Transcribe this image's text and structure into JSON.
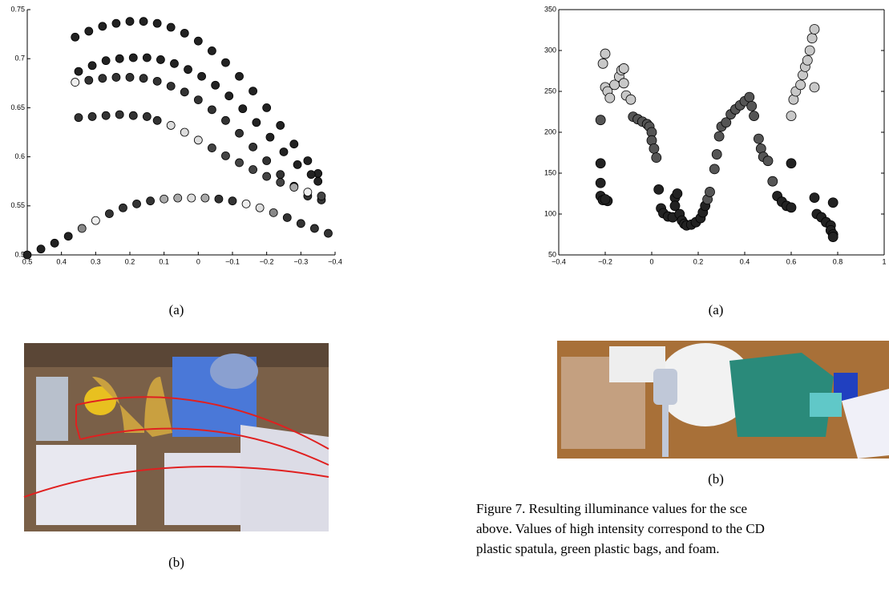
{
  "chart_data": [
    {
      "type": "scatter",
      "xlim": [
        0.5,
        -0.4
      ],
      "ylim": [
        0.5,
        0.75
      ],
      "box": false,
      "xticks": [
        0.5,
        0.4,
        0.3,
        0.2,
        0.1,
        0,
        {
          "value": -0.1,
          "label": "−0.1"
        },
        {
          "value": -0.2,
          "label": "−0.2"
        },
        {
          "value": -0.3,
          "label": "−0.3"
        },
        {
          "value": -0.4,
          "label": "−0.4"
        }
      ],
      "yticks": [
        0.5,
        0.55,
        0.6,
        0.65,
        0.7,
        0.75
      ],
      "series": [
        {
          "x": [
            0.36,
            0.32,
            0.28,
            0.24,
            0.2,
            0.16,
            0.12,
            0.08,
            0.04,
            0,
            -0.04,
            -0.08,
            -0.12,
            -0.16,
            -0.2,
            -0.24,
            -0.28,
            -0.32,
            -0.35
          ],
          "values": [
            0.722,
            0.728,
            0.733,
            0.736,
            0.738,
            0.738,
            0.736,
            0.732,
            0.726,
            0.718,
            0.708,
            0.696,
            0.682,
            0.667,
            0.65,
            0.632,
            0.613,
            0.596,
            0.583
          ],
          "colors": [
            "#222",
            "#222",
            "#222",
            "#222",
            "#222",
            "#222",
            "#222",
            "#222",
            "#222",
            "#222",
            "#222",
            "#222",
            "#222",
            "#222",
            "#222",
            "#222",
            "#222",
            "#222",
            "#222"
          ]
        },
        {
          "x": [
            0.35,
            0.31,
            0.27,
            0.23,
            0.19,
            0.15,
            0.11,
            0.07,
            0.03,
            -0.01,
            -0.05,
            -0.09,
            -0.13,
            -0.17,
            -0.21,
            -0.25,
            -0.29,
            -0.33,
            -0.35
          ],
          "values": [
            0.687,
            0.693,
            0.698,
            0.7,
            0.701,
            0.701,
            0.699,
            0.695,
            0.689,
            0.682,
            0.673,
            0.662,
            0.649,
            0.635,
            0.62,
            0.605,
            0.592,
            0.582,
            0.575
          ],
          "colors": [
            "#222",
            "#222",
            "#222",
            "#222",
            "#222",
            "#222",
            "#222",
            "#222",
            "#222",
            "#222",
            "#222",
            "#222",
            "#222",
            "#222",
            "#222",
            "#222",
            "#222",
            "#222",
            "#222"
          ]
        },
        {
          "x": [
            0.36,
            0.32,
            0.28,
            0.24,
            0.2,
            0.16,
            0.12,
            0.08,
            0.04,
            0,
            -0.04,
            -0.08,
            -0.12,
            -0.16,
            -0.2,
            -0.24,
            -0.28,
            -0.32,
            -0.36
          ],
          "values": [
            0.676,
            0.678,
            0.68,
            0.681,
            0.681,
            0.68,
            0.677,
            0.672,
            0.666,
            0.658,
            0.648,
            0.637,
            0.624,
            0.61,
            0.596,
            0.582,
            0.57,
            0.56,
            0.556
          ],
          "colors": [
            "#eee",
            "#333",
            "#333",
            "#333",
            "#333",
            "#333",
            "#333",
            "#333",
            "#333",
            "#333",
            "#333",
            "#333",
            "#333",
            "#333",
            "#333",
            "#333",
            "#333",
            "#333",
            "#333"
          ]
        },
        {
          "x": [
            0.35,
            0.31,
            0.27,
            0.23,
            0.19,
            0.15,
            0.12,
            0.08,
            0.04,
            0,
            -0.04,
            -0.08,
            -0.12,
            -0.16,
            -0.2,
            -0.24,
            -0.28,
            -0.32,
            -0.36
          ],
          "values": [
            0.64,
            0.641,
            0.642,
            0.643,
            0.642,
            0.641,
            0.637,
            0.632,
            0.625,
            0.617,
            0.609,
            0.601,
            0.594,
            0.587,
            0.58,
            0.574,
            0.569,
            0.564,
            0.56
          ],
          "colors": [
            "#333",
            "#333",
            "#333",
            "#333",
            "#333",
            "#333",
            "#333",
            "#ddd",
            "#ddd",
            "#ddd",
            "#444",
            "#444",
            "#444",
            "#444",
            "#444",
            "#444",
            "#aaa",
            "#eee",
            "#444"
          ]
        },
        {
          "x": [
            0.5,
            0.46,
            0.42,
            0.38,
            0.34,
            0.3,
            0.26,
            0.22,
            0.18,
            0.14,
            0.1,
            0.06,
            0.02,
            -0.02,
            -0.06,
            -0.1,
            -0.14,
            -0.18,
            -0.22,
            -0.26,
            -0.3,
            -0.34,
            -0.38
          ],
          "values": [
            0.5,
            0.506,
            0.512,
            0.519,
            0.527,
            0.535,
            0.542,
            0.548,
            0.552,
            0.555,
            0.557,
            0.558,
            0.558,
            0.558,
            0.557,
            0.555,
            0.552,
            0.548,
            0.543,
            0.538,
            0.532,
            0.527,
            0.522
          ],
          "colors": [
            "#222",
            "#222",
            "#222",
            "#222",
            "#888",
            "#eee",
            "#333",
            "#333",
            "#333",
            "#333",
            "#aaa",
            "#aaa",
            "#ddd",
            "#aaa",
            "#333",
            "#333",
            "#eee",
            "#ddd",
            "#888",
            "#333",
            "#333",
            "#333",
            "#333"
          ]
        }
      ]
    },
    {
      "type": "scatter",
      "xlim": [
        -0.4,
        1
      ],
      "ylim": [
        50,
        350
      ],
      "box": true,
      "xticks": [
        {
          "value": -0.4,
          "label": "−0.4"
        },
        {
          "value": -0.2,
          "label": "−0.2"
        },
        0,
        0.2,
        0.4,
        0.6,
        0.8,
        1
      ],
      "yticks": [
        50,
        100,
        150,
        200,
        250,
        300,
        350
      ],
      "series": [
        {
          "x": [
            -0.22,
            -0.22,
            -0.22,
            -0.22,
            -0.21,
            -0.19,
            -0.2,
            -0.21,
            -0.2,
            -0.2,
            -0.19,
            -0.18,
            -0.16,
            -0.14,
            -0.13,
            -0.12,
            -0.12,
            -0.11,
            -0.09,
            -0.08,
            -0.06,
            -0.04,
            -0.02,
            -0.01,
            0,
            0,
            0.01,
            0.02,
            0.03,
            0.04,
            0.05,
            0.07,
            0.09,
            0.1,
            0.1,
            0.11,
            0.12,
            0.13,
            0.14,
            0.15,
            0.17,
            0.19,
            0.21,
            0.22,
            0.23,
            0.24,
            0.25,
            0.27,
            0.28,
            0.29,
            0.3,
            0.32,
            0.34,
            0.36,
            0.38,
            0.4,
            0.42,
            0.43,
            0.44,
            0.46,
            0.47,
            0.48,
            0.5,
            0.52,
            0.54,
            0.56,
            0.58,
            0.6,
            0.6,
            0.6,
            0.61,
            0.62,
            0.64,
            0.65,
            0.66,
            0.67,
            0.68,
            0.69,
            0.7,
            0.7,
            0.7,
            0.71,
            0.73,
            0.75,
            0.77,
            0.77,
            0.78,
            0.78,
            0.78
          ],
          "values": [
            215,
            162,
            138,
            122,
            117,
            116,
            118,
            284,
            296,
            255,
            250,
            242,
            258,
            268,
            276,
            278,
            260,
            245,
            240,
            219,
            216,
            213,
            210,
            207,
            200,
            190,
            180,
            169,
            130,
            107,
            101,
            97,
            96,
            120,
            110,
            125,
            100,
            92,
            88,
            86,
            87,
            90,
            95,
            102,
            110,
            118,
            127,
            155,
            173,
            195,
            207,
            212,
            222,
            228,
            233,
            238,
            243,
            232,
            220,
            192,
            180,
            170,
            165,
            140,
            122,
            115,
            110,
            108,
            162,
            220,
            240,
            250,
            258,
            270,
            280,
            288,
            300,
            315,
            326,
            255,
            120,
            100,
            96,
            90,
            86,
            80,
            75,
            72,
            114
          ],
          "colors": [
            "#555",
            "#222",
            "#222",
            "#222",
            "#222",
            "#222",
            "#222",
            "#c8c8c8",
            "#c8c8c8",
            "#c8c8c8",
            "#c8c8c8",
            "#c8c8c8",
            "#c8c8c8",
            "#c8c8c8",
            "#c8c8c8",
            "#c8c8c8",
            "#c8c8c8",
            "#c8c8c8",
            "#c8c8c8",
            "#555",
            "#555",
            "#555",
            "#555",
            "#555",
            "#555",
            "#555",
            "#555",
            "#555",
            "#222",
            "#222",
            "#222",
            "#222",
            "#222",
            "#222",
            "#222",
            "#222",
            "#222",
            "#222",
            "#222",
            "#222",
            "#222",
            "#222",
            "#222",
            "#222",
            "#222",
            "#555",
            "#555",
            "#555",
            "#555",
            "#555",
            "#555",
            "#555",
            "#555",
            "#555",
            "#555",
            "#555",
            "#555",
            "#555",
            "#555",
            "#555",
            "#555",
            "#555",
            "#555",
            "#555",
            "#222",
            "#222",
            "#222",
            "#222",
            "#222",
            "#c8c8c8",
            "#c8c8c8",
            "#c8c8c8",
            "#c8c8c8",
            "#c8c8c8",
            "#c8c8c8",
            "#c8c8c8",
            "#c8c8c8",
            "#c8c8c8",
            "#c8c8c8",
            "#c8c8c8",
            "#222",
            "#222",
            "#222",
            "#222",
            "#222",
            "#222",
            "#222",
            "#222",
            "#222"
          ]
        }
      ]
    }
  ],
  "subfigure_labels": [
    "(a)",
    "(b)",
    "(a)",
    "(b)"
  ],
  "figure_caption": [
    "Figure 7. Resulting illuminance values for the sce",
    "above. Values of high intensity correspond to the CD",
    "plastic spatula, green plastic bags, and foam."
  ]
}
